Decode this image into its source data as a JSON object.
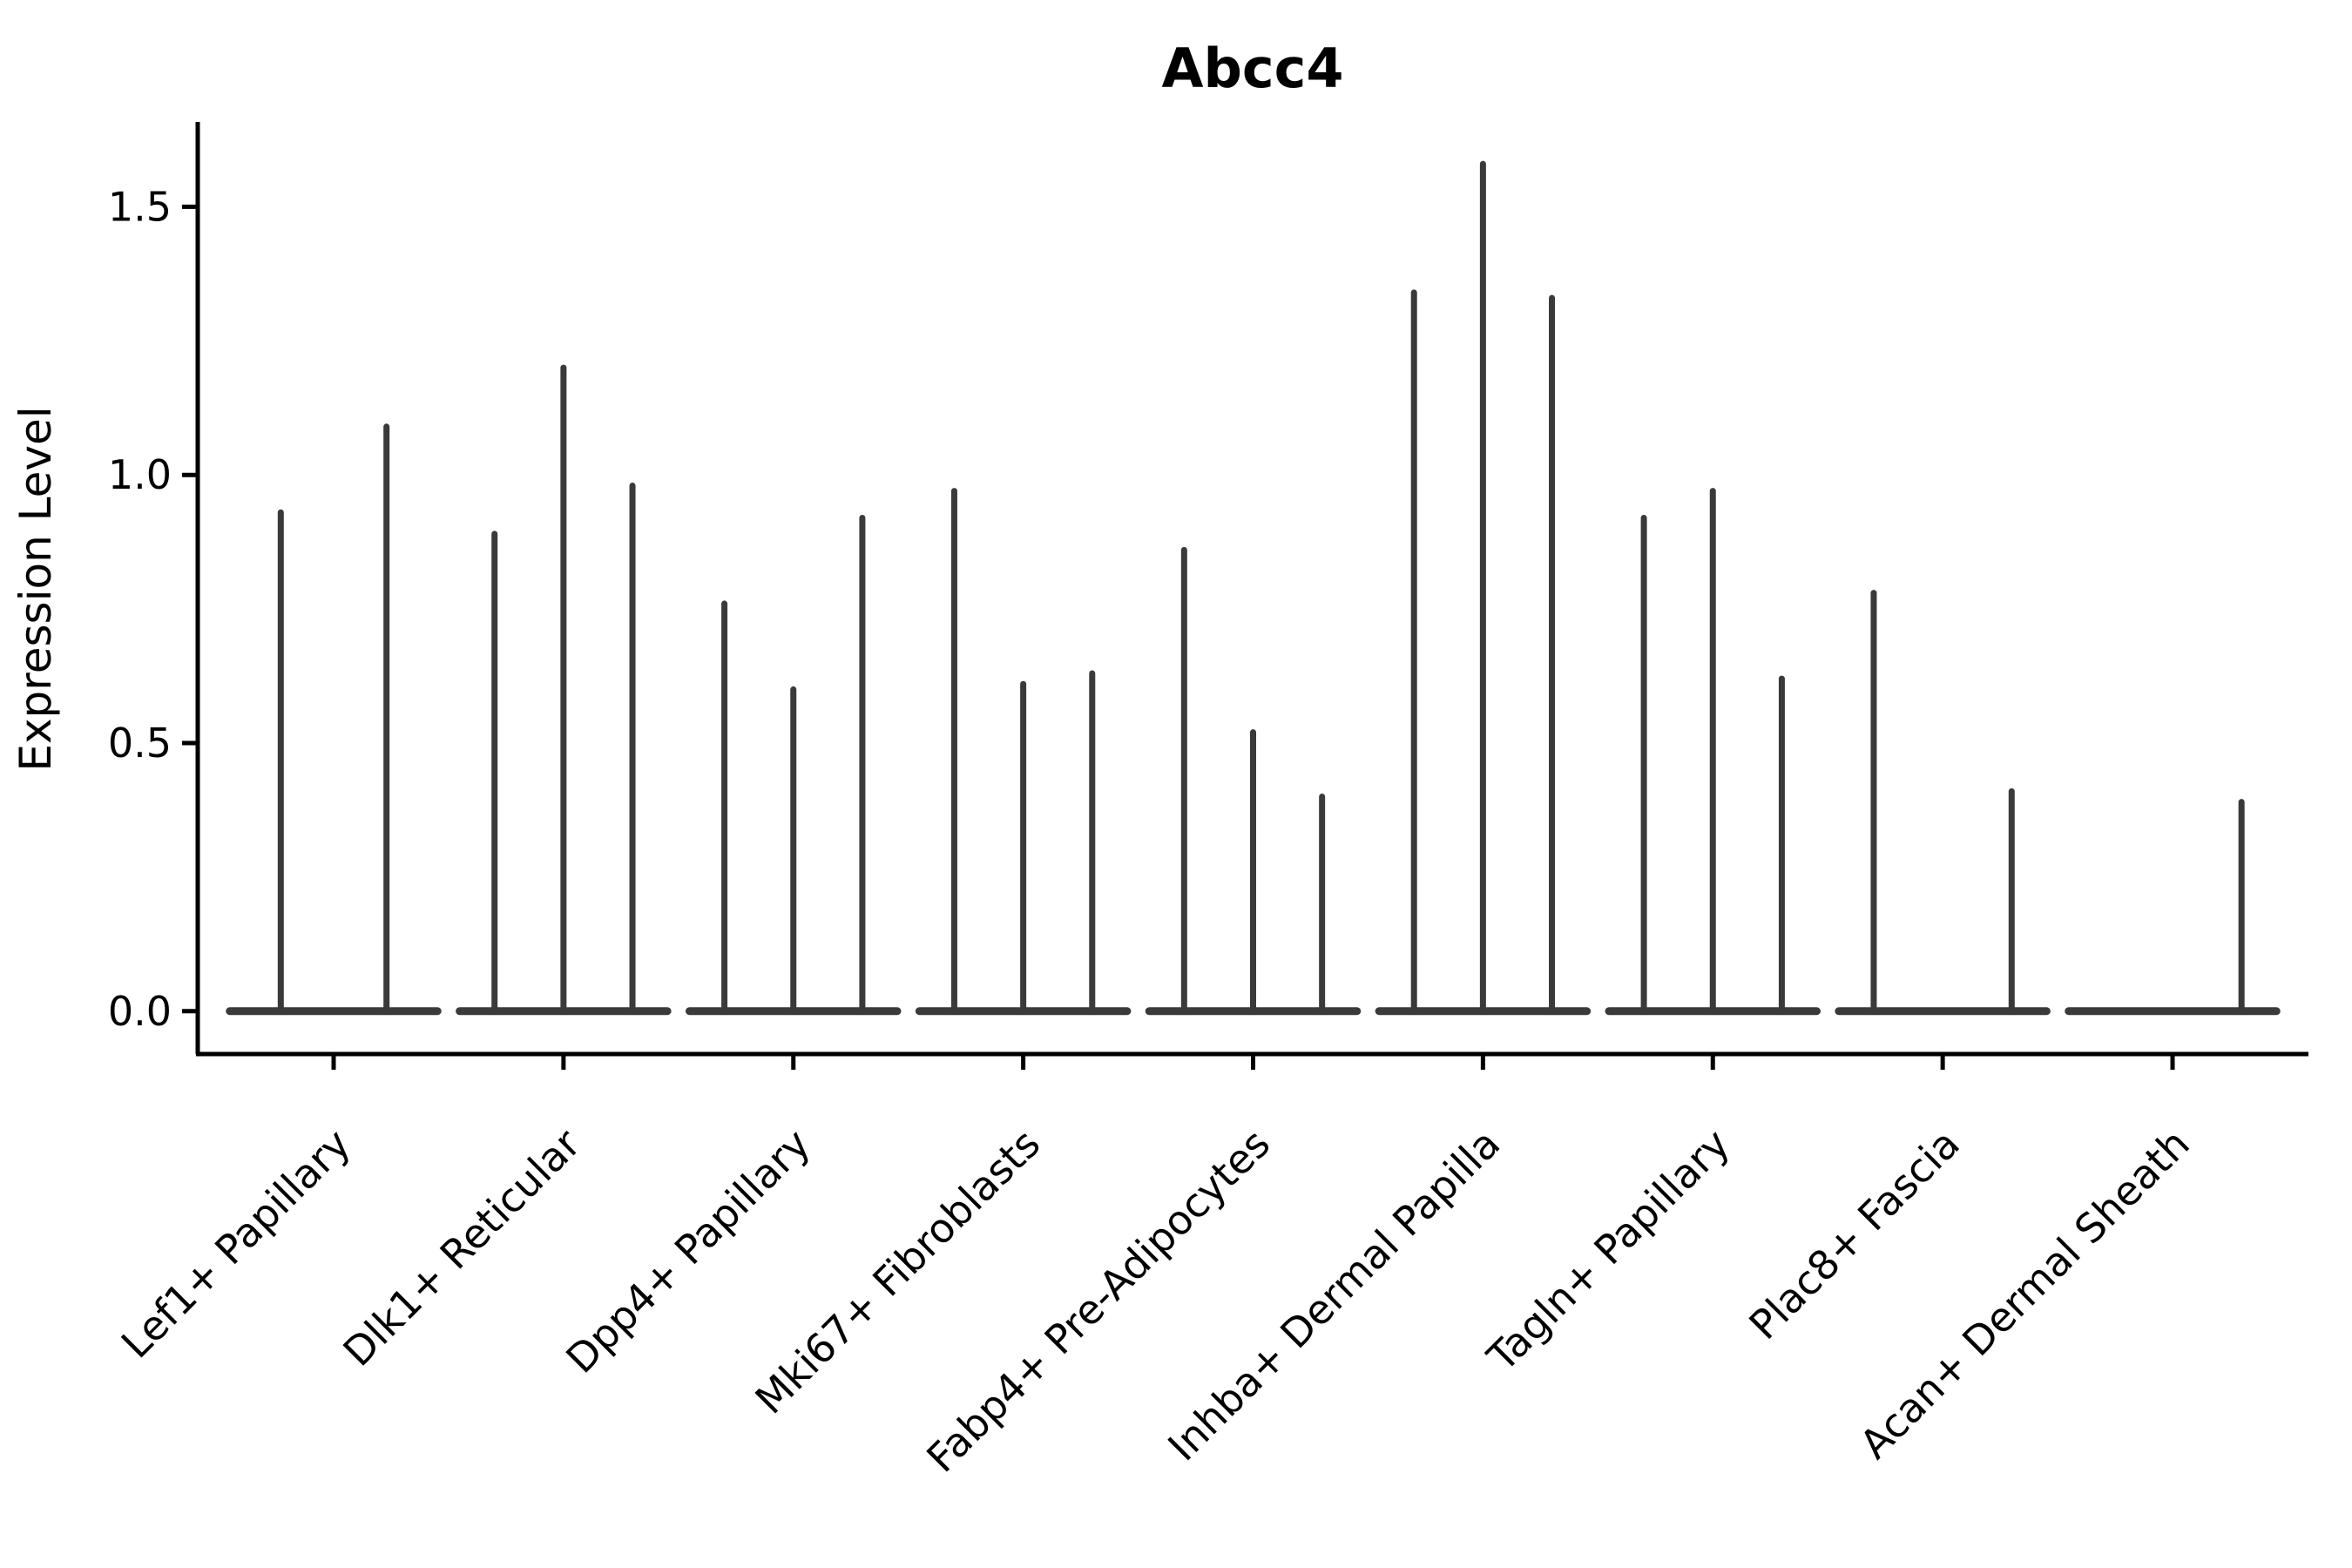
{
  "chart_data": {
    "type": "violin",
    "title": "Abcc4",
    "xlabel": "",
    "ylabel": "Expression Level",
    "ylim": [
      -0.08,
      1.655
    ],
    "yticks": [
      0.0,
      0.5,
      1.0,
      1.5
    ],
    "ytick_labels": [
      "0.0",
      "0.5",
      "1.0",
      "1.5"
    ],
    "grid": false,
    "legend": "none",
    "colors": {
      "axis": "#000000",
      "violin": "#3a3a3a",
      "background": "#ffffff"
    },
    "categories": [
      {
        "label": "Lef1+ Papillary",
        "violins": [
          {
            "pos": -0.23,
            "max": 0.93
          },
          {
            "pos": 0.23,
            "max": 1.09
          }
        ]
      },
      {
        "label": "Dlk1+ Reticular",
        "violins": [
          {
            "pos": -0.3,
            "max": 0.89
          },
          {
            "pos": 0,
            "max": 1.2
          },
          {
            "pos": 0.3,
            "max": 0.98
          }
        ]
      },
      {
        "label": "Dpp4+ Papillary",
        "violins": [
          {
            "pos": -0.3,
            "max": 0.76
          },
          {
            "pos": 0,
            "max": 0.6
          },
          {
            "pos": 0.3,
            "max": 0.92
          }
        ]
      },
      {
        "label": "Mki67+ Fibroblasts",
        "violins": [
          {
            "pos": -0.3,
            "max": 0.97
          },
          {
            "pos": 0,
            "max": 0.61
          },
          {
            "pos": 0.3,
            "max": 0.63
          }
        ]
      },
      {
        "label": "Fabp4+ Pre-Adipocytes",
        "violins": [
          {
            "pos": -0.3,
            "max": 0.86
          },
          {
            "pos": 0,
            "max": 0.52
          },
          {
            "pos": 0.3,
            "max": 0.4
          }
        ]
      },
      {
        "label": "Inhba+ Dermal Papilla",
        "violins": [
          {
            "pos": -0.3,
            "max": 1.34
          },
          {
            "pos": 0,
            "max": 1.58
          },
          {
            "pos": 0.3,
            "max": 1.33
          }
        ]
      },
      {
        "label": "Tagln+ Papillary",
        "violins": [
          {
            "pos": -0.3,
            "max": 0.92
          },
          {
            "pos": 0,
            "max": 0.97
          },
          {
            "pos": 0.3,
            "max": 0.62
          }
        ]
      },
      {
        "label": "Plac8+ Fascia",
        "violins": [
          {
            "pos": -0.3,
            "max": 0.78
          },
          {
            "pos": 0,
            "max": 0.0
          },
          {
            "pos": 0.3,
            "max": 0.41
          }
        ]
      },
      {
        "label": "Acan+ Dermal Sheath",
        "violins": [
          {
            "pos": -0.3,
            "max": 0.0
          },
          {
            "pos": 0,
            "max": 0.0
          },
          {
            "pos": 0.3,
            "max": 0.39
          }
        ]
      }
    ]
  }
}
